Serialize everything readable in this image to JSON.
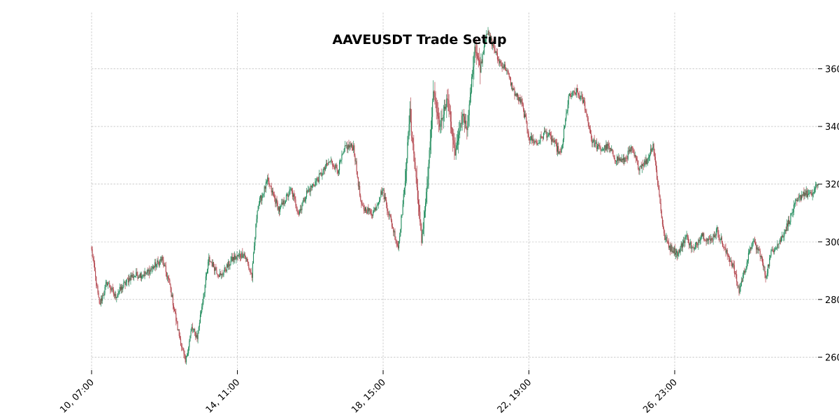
{
  "chart_data": {
    "type": "candlestick",
    "title": "AAVEUSDT Trade Setup",
    "xlabel": "",
    "ylabel": "",
    "x_tick_labels": [
      "10, 07:00",
      "14, 11:00",
      "18, 15:00",
      "22, 19:00",
      "26, 23:00"
    ],
    "y_tick_labels": [
      "260",
      "280",
      "300",
      "320",
      "340",
      "360"
    ],
    "ylim": [
      255.5,
      379.5
    ],
    "grid": true,
    "colors": {
      "up": "#1e8a5a",
      "down": "#b2434b",
      "grid": "#b0b0b0"
    },
    "keypoints": [
      {
        "i": 0,
        "p": 297
      },
      {
        "i": 10,
        "p": 278
      },
      {
        "i": 20,
        "p": 286
      },
      {
        "i": 30,
        "p": 281
      },
      {
        "i": 50,
        "p": 288
      },
      {
        "i": 70,
        "p": 289
      },
      {
        "i": 90,
        "p": 294
      },
      {
        "i": 100,
        "p": 285
      },
      {
        "i": 110,
        "p": 270
      },
      {
        "i": 120,
        "p": 258
      },
      {
        "i": 128,
        "p": 270
      },
      {
        "i": 135,
        "p": 267
      },
      {
        "i": 150,
        "p": 294
      },
      {
        "i": 165,
        "p": 288
      },
      {
        "i": 180,
        "p": 294
      },
      {
        "i": 195,
        "p": 296
      },
      {
        "i": 205,
        "p": 288
      },
      {
        "i": 212,
        "p": 312
      },
      {
        "i": 225,
        "p": 321
      },
      {
        "i": 240,
        "p": 311
      },
      {
        "i": 255,
        "p": 318
      },
      {
        "i": 265,
        "p": 310
      },
      {
        "i": 275,
        "p": 317
      },
      {
        "i": 290,
        "p": 322
      },
      {
        "i": 305,
        "p": 328
      },
      {
        "i": 315,
        "p": 325
      },
      {
        "i": 325,
        "p": 333
      },
      {
        "i": 335,
        "p": 333
      },
      {
        "i": 345,
        "p": 312
      },
      {
        "i": 360,
        "p": 310
      },
      {
        "i": 372,
        "p": 318
      },
      {
        "i": 385,
        "p": 305
      },
      {
        "i": 392,
        "p": 298
      },
      {
        "i": 400,
        "p": 318
      },
      {
        "i": 407,
        "p": 345
      },
      {
        "i": 415,
        "p": 322
      },
      {
        "i": 422,
        "p": 300
      },
      {
        "i": 430,
        "p": 322
      },
      {
        "i": 437,
        "p": 352
      },
      {
        "i": 445,
        "p": 340
      },
      {
        "i": 455,
        "p": 350
      },
      {
        "i": 465,
        "p": 330
      },
      {
        "i": 475,
        "p": 345
      },
      {
        "i": 480,
        "p": 338
      },
      {
        "i": 490,
        "p": 368
      },
      {
        "i": 497,
        "p": 360
      },
      {
        "i": 505,
        "p": 373
      },
      {
        "i": 512,
        "p": 369
      },
      {
        "i": 520,
        "p": 363
      },
      {
        "i": 530,
        "p": 360
      },
      {
        "i": 540,
        "p": 352
      },
      {
        "i": 550,
        "p": 348
      },
      {
        "i": 560,
        "p": 336
      },
      {
        "i": 570,
        "p": 334
      },
      {
        "i": 580,
        "p": 338
      },
      {
        "i": 590,
        "p": 335
      },
      {
        "i": 600,
        "p": 330
      },
      {
        "i": 610,
        "p": 350
      },
      {
        "i": 620,
        "p": 352
      },
      {
        "i": 630,
        "p": 348
      },
      {
        "i": 640,
        "p": 335
      },
      {
        "i": 650,
        "p": 332
      },
      {
        "i": 660,
        "p": 333
      },
      {
        "i": 670,
        "p": 329
      },
      {
        "i": 680,
        "p": 328
      },
      {
        "i": 690,
        "p": 332
      },
      {
        "i": 700,
        "p": 326
      },
      {
        "i": 710,
        "p": 328
      },
      {
        "i": 718,
        "p": 334
      },
      {
        "i": 725,
        "p": 318
      },
      {
        "i": 732,
        "p": 302
      },
      {
        "i": 740,
        "p": 298
      },
      {
        "i": 750,
        "p": 296
      },
      {
        "i": 760,
        "p": 302
      },
      {
        "i": 770,
        "p": 297
      },
      {
        "i": 780,
        "p": 303
      },
      {
        "i": 790,
        "p": 300
      },
      {
        "i": 800,
        "p": 304
      },
      {
        "i": 810,
        "p": 297
      },
      {
        "i": 820,
        "p": 292
      },
      {
        "i": 828,
        "p": 283
      },
      {
        "i": 838,
        "p": 293
      },
      {
        "i": 845,
        "p": 300
      },
      {
        "i": 855,
        "p": 296
      },
      {
        "i": 862,
        "p": 288
      },
      {
        "i": 870,
        "p": 297
      },
      {
        "i": 880,
        "p": 300
      },
      {
        "i": 890,
        "p": 306
      },
      {
        "i": 900,
        "p": 313
      },
      {
        "i": 910,
        "p": 317
      },
      {
        "i": 920,
        "p": 316
      },
      {
        "i": 929,
        "p": 320
      }
    ]
  }
}
